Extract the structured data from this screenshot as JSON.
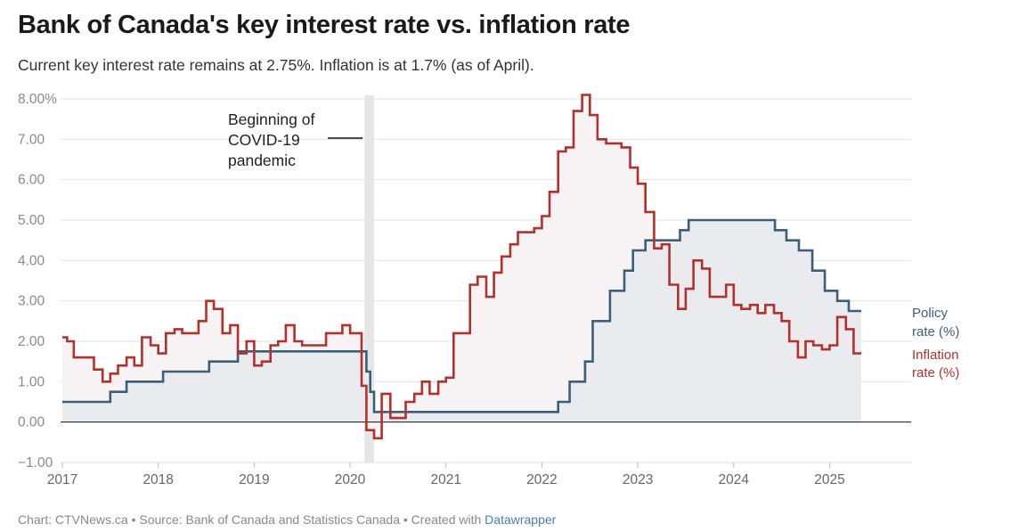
{
  "title": "Bank of Canada's key interest rate vs. inflation rate",
  "subtitle": "Current key interest rate remains at 2.75%. Inflation is at 1.7% (as of April).",
  "footer": {
    "prefix": "Chart: CTVNews.ca • Source: Bank of Canada and Statistics Canada • Created with ",
    "link": "Datawrapper"
  },
  "colors": {
    "policy": "#3b5f7a",
    "inflation": "#b3312b",
    "band": "#e6e6e6"
  },
  "chart_data": {
    "type": "line",
    "xlim": [
      2017,
      2025.85
    ],
    "ylim": [
      -1,
      8
    ],
    "y_ticks": [
      {
        "value": 8,
        "label": "8.00%"
      },
      {
        "value": 7,
        "label": "7.00"
      },
      {
        "value": 6,
        "label": "6.00"
      },
      {
        "value": 5,
        "label": "5.00"
      },
      {
        "value": 4,
        "label": "4.00"
      },
      {
        "value": 3,
        "label": "3.00"
      },
      {
        "value": 2,
        "label": "2.00"
      },
      {
        "value": 1,
        "label": "1.00"
      },
      {
        "value": 0,
        "label": "0.00"
      },
      {
        "value": -1,
        "label": "−1.00"
      }
    ],
    "x_ticks": [
      "2017",
      "2018",
      "2019",
      "2020",
      "2021",
      "2022",
      "2023",
      "2024",
      "2025"
    ],
    "annotation": {
      "lines": [
        "Beginning of",
        "COVID-19",
        "pandemic"
      ],
      "x_start": 2020.15,
      "x_end": 2020.25
    },
    "series": [
      {
        "name": "Policy rate (%)",
        "label_lines": [
          "Policy",
          "rate (%)"
        ],
        "color": "#3b5f7a",
        "step": true,
        "points": [
          [
            2017.0,
            0.5
          ],
          [
            2017.5,
            0.75
          ],
          [
            2017.67,
            1.0
          ],
          [
            2018.05,
            1.25
          ],
          [
            2018.53,
            1.5
          ],
          [
            2018.83,
            1.75
          ],
          [
            2020.17,
            1.25
          ],
          [
            2020.21,
            0.75
          ],
          [
            2020.25,
            0.25
          ],
          [
            2022.17,
            0.5
          ],
          [
            2022.29,
            1.0
          ],
          [
            2022.45,
            1.5
          ],
          [
            2022.53,
            2.5
          ],
          [
            2022.71,
            3.25
          ],
          [
            2022.86,
            3.75
          ],
          [
            2022.95,
            4.25
          ],
          [
            2023.08,
            4.5
          ],
          [
            2023.44,
            4.75
          ],
          [
            2023.53,
            5.0
          ],
          [
            2024.43,
            4.75
          ],
          [
            2024.55,
            4.5
          ],
          [
            2024.68,
            4.25
          ],
          [
            2024.82,
            3.75
          ],
          [
            2024.95,
            3.25
          ],
          [
            2025.08,
            3.0
          ],
          [
            2025.2,
            2.75
          ],
          [
            2025.33,
            2.75
          ]
        ]
      },
      {
        "name": "Inflation rate (%)",
        "label_lines": [
          "Inflation",
          "rate (%)"
        ],
        "color": "#b3312b",
        "step": true,
        "points": [
          [
            2017.0,
            2.1
          ],
          [
            2017.05,
            2.0
          ],
          [
            2017.12,
            1.6
          ],
          [
            2017.33,
            1.3
          ],
          [
            2017.42,
            1.0
          ],
          [
            2017.5,
            1.2
          ],
          [
            2017.58,
            1.4
          ],
          [
            2017.67,
            1.6
          ],
          [
            2017.75,
            1.4
          ],
          [
            2017.83,
            2.1
          ],
          [
            2017.92,
            1.9
          ],
          [
            2018.0,
            1.7
          ],
          [
            2018.08,
            2.2
          ],
          [
            2018.17,
            2.3
          ],
          [
            2018.25,
            2.2
          ],
          [
            2018.42,
            2.5
          ],
          [
            2018.5,
            3.0
          ],
          [
            2018.58,
            2.8
          ],
          [
            2018.67,
            2.2
          ],
          [
            2018.75,
            2.4
          ],
          [
            2018.83,
            1.7
          ],
          [
            2018.92,
            2.0
          ],
          [
            2019.0,
            1.4
          ],
          [
            2019.08,
            1.5
          ],
          [
            2019.17,
            1.9
          ],
          [
            2019.25,
            2.0
          ],
          [
            2019.33,
            2.4
          ],
          [
            2019.42,
            2.0
          ],
          [
            2019.5,
            1.9
          ],
          [
            2019.75,
            2.2
          ],
          [
            2019.92,
            2.4
          ],
          [
            2020.0,
            2.2
          ],
          [
            2020.12,
            0.9
          ],
          [
            2020.17,
            -0.2
          ],
          [
            2020.25,
            -0.4
          ],
          [
            2020.33,
            0.7
          ],
          [
            2020.42,
            0.1
          ],
          [
            2020.58,
            0.5
          ],
          [
            2020.67,
            0.7
          ],
          [
            2020.75,
            1.0
          ],
          [
            2020.83,
            0.7
          ],
          [
            2020.92,
            1.0
          ],
          [
            2021.0,
            1.1
          ],
          [
            2021.08,
            2.2
          ],
          [
            2021.25,
            3.4
          ],
          [
            2021.33,
            3.6
          ],
          [
            2021.42,
            3.1
          ],
          [
            2021.5,
            3.7
          ],
          [
            2021.58,
            4.1
          ],
          [
            2021.67,
            4.4
          ],
          [
            2021.75,
            4.7
          ],
          [
            2021.92,
            4.8
          ],
          [
            2022.0,
            5.1
          ],
          [
            2022.08,
            5.7
          ],
          [
            2022.17,
            6.7
          ],
          [
            2022.25,
            6.8
          ],
          [
            2022.33,
            7.7
          ],
          [
            2022.42,
            8.1
          ],
          [
            2022.5,
            7.6
          ],
          [
            2022.58,
            7.0
          ],
          [
            2022.67,
            6.9
          ],
          [
            2022.83,
            6.8
          ],
          [
            2022.92,
            6.3
          ],
          [
            2023.0,
            5.9
          ],
          [
            2023.08,
            5.2
          ],
          [
            2023.17,
            4.3
          ],
          [
            2023.25,
            4.4
          ],
          [
            2023.33,
            3.4
          ],
          [
            2023.42,
            2.8
          ],
          [
            2023.5,
            3.3
          ],
          [
            2023.58,
            4.0
          ],
          [
            2023.67,
            3.8
          ],
          [
            2023.75,
            3.1
          ],
          [
            2023.92,
            3.4
          ],
          [
            2024.0,
            2.9
          ],
          [
            2024.08,
            2.8
          ],
          [
            2024.17,
            2.9
          ],
          [
            2024.25,
            2.7
          ],
          [
            2024.33,
            2.9
          ],
          [
            2024.42,
            2.7
          ],
          [
            2024.5,
            2.5
          ],
          [
            2024.58,
            2.0
          ],
          [
            2024.67,
            1.6
          ],
          [
            2024.75,
            2.0
          ],
          [
            2024.83,
            1.9
          ],
          [
            2024.92,
            1.8
          ],
          [
            2025.0,
            1.9
          ],
          [
            2025.08,
            2.6
          ],
          [
            2025.17,
            2.3
          ],
          [
            2025.25,
            1.7
          ],
          [
            2025.33,
            1.7
          ]
        ]
      }
    ]
  }
}
